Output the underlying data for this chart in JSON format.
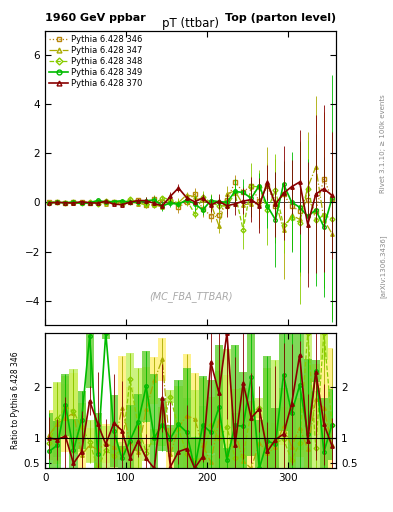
{
  "title_left": "1960 GeV ppbar",
  "title_right": "Top (parton level)",
  "main_title": "pT (ttbar)",
  "watermark": "(MC_FBA_TTBAR)",
  "right_label1": "Rivet 3.1.10; ≥ 100k events",
  "right_label2": "[arXiv:1306.3436]",
  "ylabel_ratio": "Ratio to Pythia 6.428 346",
  "series": [
    {
      "label": "Pythia 6.428 346",
      "color": "#b8860b",
      "linestyle": "dotted",
      "marker": "s",
      "lw": 0.9
    },
    {
      "label": "Pythia 6.428 347",
      "color": "#aaaa00",
      "linestyle": "dashdot",
      "marker": "^",
      "lw": 0.9
    },
    {
      "label": "Pythia 6.428 348",
      "color": "#88cc00",
      "linestyle": "dashed",
      "marker": "D",
      "lw": 0.9
    },
    {
      "label": "Pythia 6.428 349",
      "color": "#00bb00",
      "linestyle": "solid",
      "marker": "o",
      "lw": 1.2
    },
    {
      "label": "Pythia 6.428 370",
      "color": "#880000",
      "linestyle": "solid",
      "marker": "^",
      "lw": 1.2
    }
  ],
  "band_colors": [
    "#ffee66",
    "#bbee55",
    "#55cc22"
  ],
  "xlim": [
    0,
    360
  ],
  "ylim_main": [
    -5,
    7
  ],
  "ylim_ratio": [
    0.4,
    3.05
  ],
  "x_ticks": [
    0,
    100,
    200,
    300
  ],
  "main_yticks": [
    -4,
    -2,
    0,
    2,
    4,
    6
  ],
  "ratio_yticks": [
    0.5,
    1.0,
    2.0
  ],
  "ratio_ytick_labels": [
    "0.5",
    "1",
    "2"
  ],
  "figsize": [
    3.93,
    5.12
  ],
  "dpi": 100
}
